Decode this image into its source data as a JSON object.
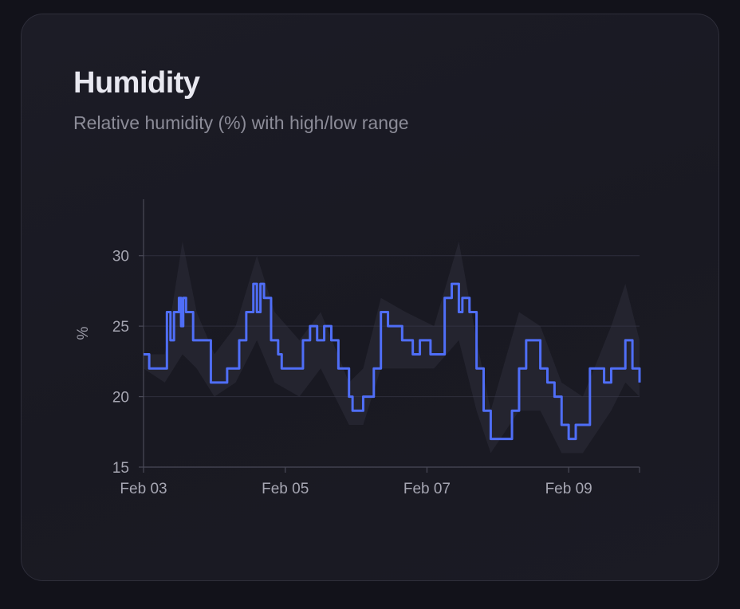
{
  "card": {
    "title": "Humidity",
    "subtitle": "Relative humidity (%) with high/low range"
  },
  "chart_data": {
    "type": "line",
    "title": "Humidity",
    "subtitle": "Relative humidity (%) with high/low range",
    "xlabel": "",
    "ylabel": "%",
    "ylim": [
      15,
      34
    ],
    "yticks": [
      15,
      20,
      25,
      30
    ],
    "xticks": [
      {
        "label": "Feb 03",
        "day": 0
      },
      {
        "label": "Feb 05",
        "day": 2
      },
      {
        "label": "Feb 07",
        "day": 4
      },
      {
        "label": "Feb 09",
        "day": 6
      }
    ],
    "xlim_days": [
      0,
      7
    ],
    "grid": true,
    "line_color": "#4f6ef7",
    "range_color": "#3a3a48",
    "series": [
      {
        "points": [
          [
            0,
            23
          ],
          [
            0.08,
            22
          ],
          [
            0.3,
            22
          ],
          [
            0.33,
            26
          ],
          [
            0.38,
            24
          ],
          [
            0.43,
            26
          ],
          [
            0.5,
            27
          ],
          [
            0.53,
            25
          ],
          [
            0.56,
            27
          ],
          [
            0.6,
            26
          ],
          [
            0.7,
            24
          ],
          [
            0.8,
            24
          ],
          [
            0.95,
            21
          ],
          [
            1.1,
            21
          ],
          [
            1.18,
            22
          ],
          [
            1.3,
            22
          ],
          [
            1.35,
            24
          ],
          [
            1.45,
            26
          ],
          [
            1.55,
            28
          ],
          [
            1.6,
            26
          ],
          [
            1.65,
            28
          ],
          [
            1.7,
            27
          ],
          [
            1.8,
            24
          ],
          [
            1.9,
            23
          ],
          [
            1.95,
            22
          ],
          [
            2.05,
            22
          ],
          [
            2.2,
            22
          ],
          [
            2.25,
            24
          ],
          [
            2.35,
            25
          ],
          [
            2.45,
            24
          ],
          [
            2.55,
            25
          ],
          [
            2.65,
            24
          ],
          [
            2.75,
            22
          ],
          [
            2.9,
            20
          ],
          [
            2.95,
            19
          ],
          [
            3.05,
            19
          ],
          [
            3.1,
            20
          ],
          [
            3.2,
            20
          ],
          [
            3.25,
            22
          ],
          [
            3.35,
            26
          ],
          [
            3.45,
            25
          ],
          [
            3.55,
            25
          ],
          [
            3.65,
            24
          ],
          [
            3.8,
            23
          ],
          [
            3.9,
            24
          ],
          [
            4.05,
            23
          ],
          [
            4.15,
            23
          ],
          [
            4.25,
            27
          ],
          [
            4.35,
            28
          ],
          [
            4.45,
            26
          ],
          [
            4.5,
            27
          ],
          [
            4.6,
            26
          ],
          [
            4.7,
            22
          ],
          [
            4.8,
            19
          ],
          [
            4.9,
            17
          ],
          [
            5.0,
            17
          ],
          [
            5.1,
            17
          ],
          [
            5.2,
            19
          ],
          [
            5.3,
            22
          ],
          [
            5.4,
            24
          ],
          [
            5.5,
            24
          ],
          [
            5.6,
            22
          ],
          [
            5.7,
            21
          ],
          [
            5.8,
            20
          ],
          [
            5.9,
            18
          ],
          [
            6.0,
            17
          ],
          [
            6.1,
            18
          ],
          [
            6.2,
            18
          ],
          [
            6.3,
            22
          ],
          [
            6.4,
            22
          ],
          [
            6.5,
            21
          ],
          [
            6.6,
            22
          ],
          [
            6.7,
            22
          ],
          [
            6.8,
            24
          ],
          [
            6.9,
            22
          ],
          [
            7.0,
            21
          ]
        ],
        "high": [
          [
            0,
            23
          ],
          [
            0.3,
            23
          ],
          [
            0.55,
            31
          ],
          [
            0.75,
            26
          ],
          [
            1.0,
            23
          ],
          [
            1.3,
            25
          ],
          [
            1.6,
            30
          ],
          [
            1.85,
            26
          ],
          [
            2.2,
            24
          ],
          [
            2.5,
            26
          ],
          [
            2.9,
            21
          ],
          [
            3.1,
            22
          ],
          [
            3.35,
            27
          ],
          [
            3.7,
            26
          ],
          [
            4.1,
            25
          ],
          [
            4.45,
            31
          ],
          [
            4.7,
            24
          ],
          [
            4.9,
            19
          ],
          [
            5.3,
            26
          ],
          [
            5.6,
            25
          ],
          [
            5.9,
            21
          ],
          [
            6.2,
            20
          ],
          [
            6.6,
            25
          ],
          [
            6.8,
            28
          ],
          [
            7.0,
            24
          ]
        ],
        "low": [
          [
            0,
            22
          ],
          [
            0.3,
            21
          ],
          [
            0.55,
            23
          ],
          [
            0.75,
            22
          ],
          [
            1.0,
            20
          ],
          [
            1.3,
            21
          ],
          [
            1.6,
            24
          ],
          [
            1.85,
            21
          ],
          [
            2.2,
            20
          ],
          [
            2.5,
            22
          ],
          [
            2.9,
            18
          ],
          [
            3.1,
            18
          ],
          [
            3.35,
            22
          ],
          [
            3.7,
            22
          ],
          [
            4.1,
            22
          ],
          [
            4.45,
            24
          ],
          [
            4.7,
            19
          ],
          [
            4.9,
            16
          ],
          [
            5.3,
            19
          ],
          [
            5.6,
            19
          ],
          [
            5.9,
            16
          ],
          [
            6.2,
            16
          ],
          [
            6.6,
            19
          ],
          [
            6.8,
            21
          ],
          [
            7.0,
            20
          ]
        ]
      }
    ]
  }
}
